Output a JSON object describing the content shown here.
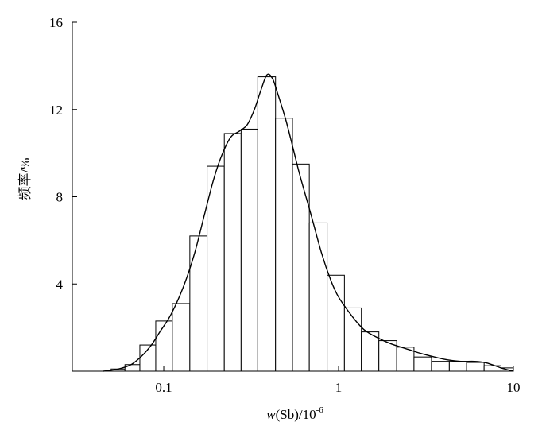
{
  "chart_data": {
    "type": "bar",
    "subtype": "histogram with density curve",
    "xlabel_prefix": "w",
    "xlabel_rest": "(Sb)/10",
    "xlabel_exponent": "-6",
    "ylabel": "频率/%",
    "xscale": "log",
    "xlim": [
      0.03,
      10
    ],
    "ylim": [
      0,
      16
    ],
    "xticks": [
      {
        "value": 0.1,
        "label": "0.1"
      },
      {
        "value": 1,
        "label": "1"
      },
      {
        "value": 10,
        "label": "10"
      }
    ],
    "yticks": [
      {
        "value": 4,
        "label": "4"
      },
      {
        "value": 8,
        "label": "8"
      },
      {
        "value": 12,
        "label": "12"
      },
      {
        "value": 16,
        "label": "16"
      }
    ],
    "grid": false,
    "bins": [
      {
        "x0": 0.05,
        "x1": 0.06,
        "value": 0.1
      },
      {
        "x0": 0.06,
        "x1": 0.073,
        "value": 0.3
      },
      {
        "x0": 0.073,
        "x1": 0.09,
        "value": 1.2
      },
      {
        "x0": 0.09,
        "x1": 0.112,
        "value": 2.3
      },
      {
        "x0": 0.112,
        "x1": 0.141,
        "value": 3.1
      },
      {
        "x0": 0.141,
        "x1": 0.177,
        "value": 6.2
      },
      {
        "x0": 0.177,
        "x1": 0.222,
        "value": 9.4
      },
      {
        "x0": 0.222,
        "x1": 0.277,
        "value": 10.9
      },
      {
        "x0": 0.277,
        "x1": 0.345,
        "value": 11.1
      },
      {
        "x0": 0.345,
        "x1": 0.436,
        "value": 13.5
      },
      {
        "x0": 0.436,
        "x1": 0.545,
        "value": 11.6
      },
      {
        "x0": 0.545,
        "x1": 0.68,
        "value": 9.5
      },
      {
        "x0": 0.68,
        "x1": 0.86,
        "value": 6.8
      },
      {
        "x0": 0.86,
        "x1": 1.08,
        "value": 4.4
      },
      {
        "x0": 1.08,
        "x1": 1.35,
        "value": 2.9
      },
      {
        "x0": 1.35,
        "x1": 1.7,
        "value": 1.8
      },
      {
        "x0": 1.7,
        "x1": 2.15,
        "value": 1.4
      },
      {
        "x0": 2.15,
        "x1": 2.7,
        "value": 1.1
      },
      {
        "x0": 2.7,
        "x1": 3.4,
        "value": 0.65
      },
      {
        "x0": 3.4,
        "x1": 4.3,
        "value": 0.45
      },
      {
        "x0": 4.3,
        "x1": 5.4,
        "value": 0.45
      },
      {
        "x0": 5.4,
        "x1": 6.8,
        "value": 0.4
      },
      {
        "x0": 6.8,
        "x1": 8.5,
        "value": 0.25
      },
      {
        "x0": 8.5,
        "x1": 10.0,
        "value": 0.15
      }
    ],
    "density_curve": {
      "x": [
        0.045,
        0.055,
        0.065,
        0.075,
        0.085,
        0.095,
        0.11,
        0.13,
        0.15,
        0.17,
        0.19,
        0.21,
        0.24,
        0.27,
        0.3,
        0.33,
        0.36,
        0.39,
        0.42,
        0.45,
        0.5,
        0.55,
        0.6,
        0.7,
        0.8,
        0.9,
        1.0,
        1.2,
        1.4,
        1.7,
        2.0,
        2.5,
        3.0,
        4.0,
        5.0,
        6.0,
        7.0,
        8.5,
        10.0
      ],
      "y": [
        0.0,
        0.1,
        0.3,
        0.7,
        1.2,
        1.8,
        2.6,
        3.9,
        5.4,
        7.1,
        8.6,
        9.7,
        10.7,
        11.0,
        11.3,
        12.0,
        12.9,
        13.6,
        13.4,
        12.7,
        11.5,
        10.2,
        9.0,
        7.1,
        5.4,
        4.2,
        3.4,
        2.5,
        1.9,
        1.5,
        1.25,
        1.0,
        0.8,
        0.55,
        0.45,
        0.45,
        0.38,
        0.15,
        0.0
      ]
    },
    "bar_fill": "#ffffff",
    "bar_stroke": "#000000",
    "curve_color": "#000000"
  }
}
